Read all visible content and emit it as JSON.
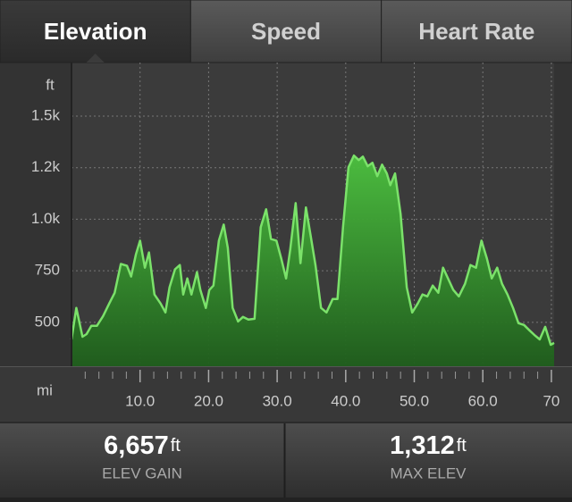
{
  "tabs": [
    {
      "label": "Elevation",
      "selected": true
    },
    {
      "label": "Speed",
      "selected": false
    },
    {
      "label": "Heart Rate",
      "selected": false
    }
  ],
  "chart_data": {
    "type": "area",
    "y_label": "ft",
    "x_label": "mi",
    "color": "#3fae36",
    "line_color": "#7be26a",
    "grid": true,
    "xlim": [
      0,
      70.4
    ],
    "ylim": [
      287,
      1760
    ],
    "xticks": [
      {
        "value": 10,
        "label": "10.0"
      },
      {
        "value": 20,
        "label": "20.0"
      },
      {
        "value": 30,
        "label": "30.0"
      },
      {
        "value": 40,
        "label": "40.0"
      },
      {
        "value": 50,
        "label": "50.0"
      },
      {
        "value": 60,
        "label": "60.0"
      },
      70
    ],
    "xminorticks": [
      2,
      4,
      6,
      8,
      12,
      14,
      16,
      18,
      22,
      24,
      26,
      28,
      32,
      34,
      36,
      38,
      42,
      44,
      46,
      48,
      52,
      54,
      56,
      58,
      62,
      64,
      66,
      68
    ],
    "yticks": [
      {
        "value": 1500,
        "label": "1.5k"
      },
      {
        "value": 1250,
        "label": "1.2k"
      },
      {
        "value": 1000,
        "label": "1.0k"
      },
      750,
      500
    ],
    "x": [
      0,
      0.7,
      1.6,
      2.2,
      2.9,
      3.7,
      4.6,
      5.5,
      6.3,
      7.2,
      8.1,
      8.7,
      9.4,
      10,
      10.7,
      11.3,
      12.1,
      13,
      13.7,
      14.3,
      15.1,
      15.8,
      16.3,
      16.9,
      17.5,
      18.3,
      18.8,
      19.6,
      20.1,
      20.7,
      21.5,
      22.2,
      22.8,
      23.5,
      24.3,
      25,
      25.8,
      26.7,
      27.6,
      28.4,
      29.1,
      29.9,
      30.6,
      31.3,
      31.9,
      32.7,
      33.4,
      34.2,
      34.9,
      35.6,
      36.4,
      37.2,
      38.1,
      38.8,
      39.6,
      40.4,
      41.2,
      41.9,
      42.5,
      43.2,
      43.9,
      44.6,
      45.3,
      46,
      46.5,
      47.2,
      48,
      48.9,
      49.7,
      50.5,
      51.2,
      51.9,
      52.7,
      53.5,
      54.2,
      54.8,
      55.7,
      56.5,
      57.4,
      58.2,
      59,
      59.8,
      60.6,
      61.3,
      62.1,
      62.8,
      63.6,
      64.4,
      65.2,
      66,
      66.8,
      67.5,
      68.3,
      69.1,
      69.9,
      70.4
    ],
    "values": [
      417,
      570,
      430,
      443,
      483,
      483,
      530,
      591,
      643,
      783,
      774,
      722,
      830,
      896,
      765,
      839,
      635,
      591,
      548,
      670,
      757,
      778,
      635,
      713,
      635,
      743,
      657,
      570,
      657,
      678,
      896,
      974,
      861,
      570,
      504,
      526,
      513,
      517,
      961,
      1048,
      904,
      896,
      809,
      713,
      852,
      1078,
      787,
      1057,
      917,
      774,
      570,
      548,
      613,
      613,
      961,
      1252,
      1309,
      1287,
      1304,
      1257,
      1274,
      1209,
      1265,
      1222,
      1165,
      1222,
      1026,
      670,
      548,
      591,
      635,
      626,
      678,
      643,
      765,
      722,
      657,
      626,
      687,
      778,
      765,
      896,
      809,
      713,
      765,
      687,
      635,
      570,
      496,
      487,
      461,
      439,
      417,
      478,
      391,
      400
    ]
  },
  "stats": [
    {
      "value": "6,657",
      "unit": "ft",
      "label": "ELEV GAIN"
    },
    {
      "value": "1,312",
      "unit": "ft",
      "label": "MAX ELEV"
    }
  ]
}
